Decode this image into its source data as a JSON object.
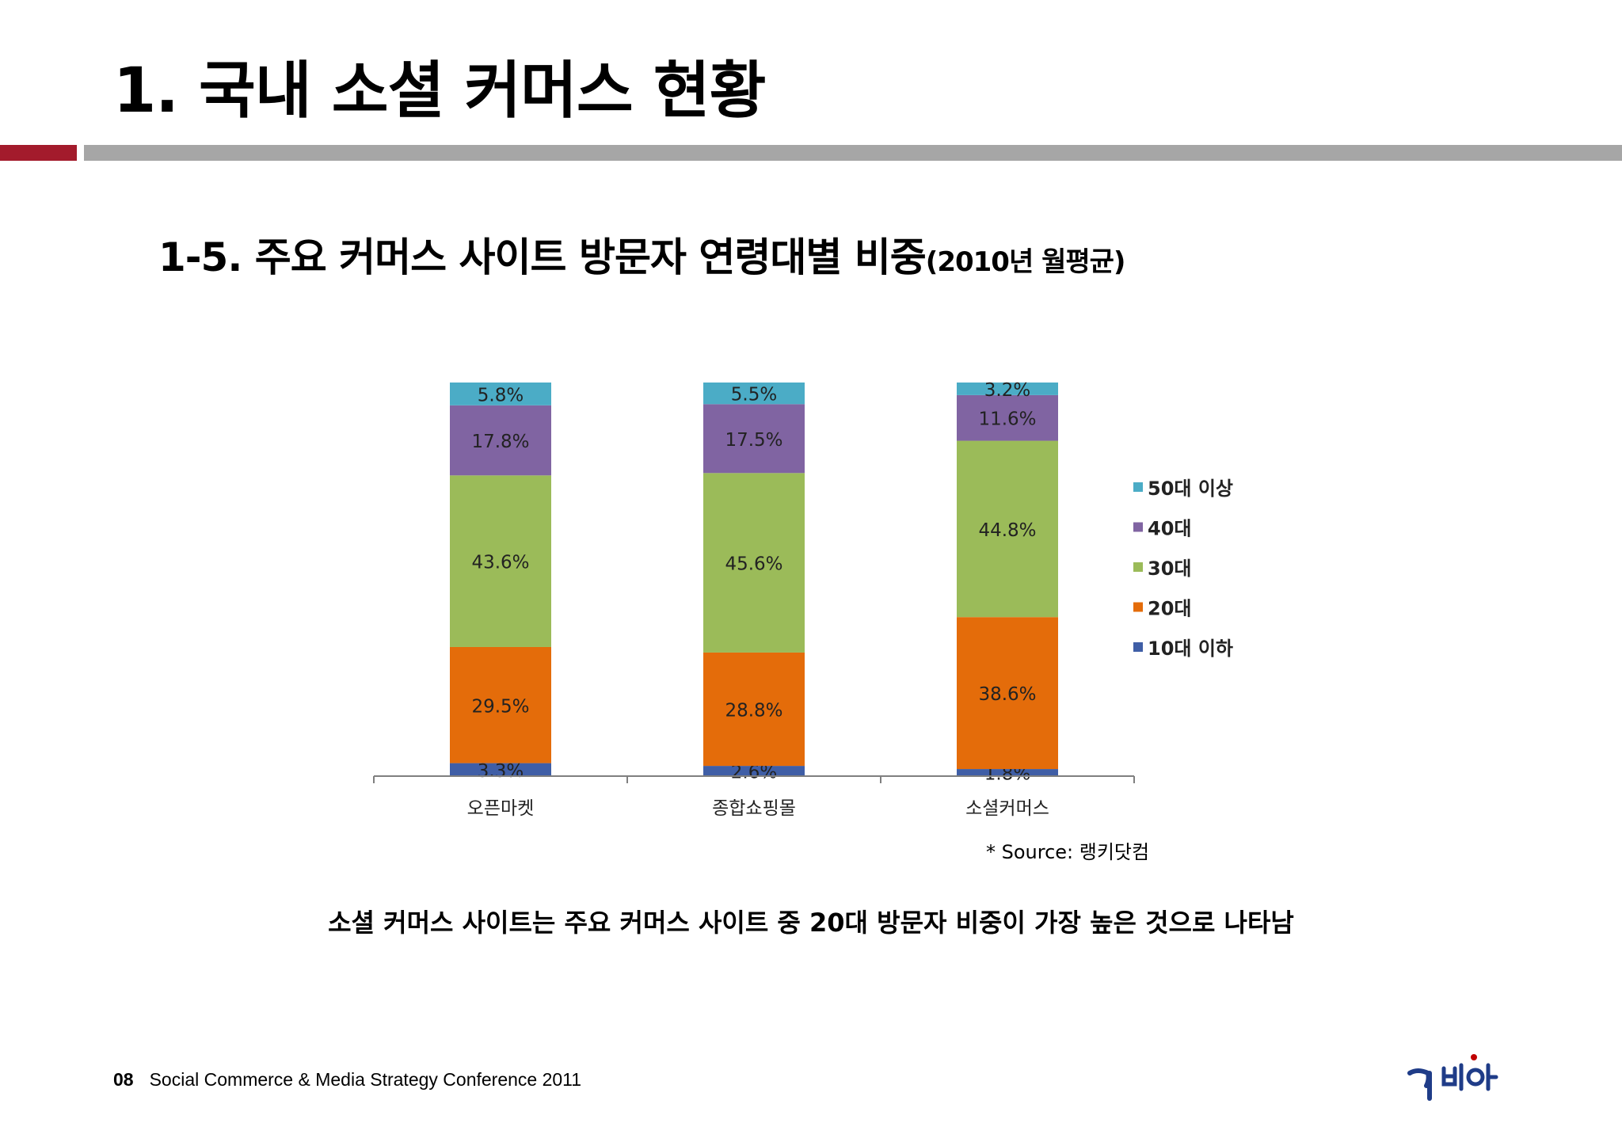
{
  "title": "1. 국내 소셜 커머스 현황",
  "subtitle": {
    "main": "1-5. 주요 커머스 사이트 방문자 연령대별 비중",
    "paren": "(2010년 월평균)"
  },
  "source": "* Source: 랭키닷컴",
  "summary": "소셜 커머스 사이트는 주요 커머스 사이트 중 20대 방문자 비중이 가장 높은 것으로 나타남",
  "footer": {
    "page": "08",
    "text": "Social Commerce & Media Strategy Conference 2011"
  },
  "colors": {
    "accent_red": "#a31b2c",
    "rule_gray": "#a6a6a6"
  },
  "chart_data": {
    "type": "bar",
    "stacked": true,
    "percent_stacked": true,
    "categories": [
      "오픈마켓",
      "종합쇼핑몰",
      "소셜커머스"
    ],
    "series": [
      {
        "name": "10대 이하",
        "color": "#3f5ea6",
        "values": [
          3.3,
          2.6,
          1.8
        ]
      },
      {
        "name": "20대",
        "color": "#e46c0a",
        "values": [
          29.5,
          28.8,
          38.6
        ]
      },
      {
        "name": "30대",
        "color": "#9bbb59",
        "values": [
          43.6,
          45.6,
          44.8
        ]
      },
      {
        "name": "40대",
        "color": "#8064a2",
        "values": [
          17.8,
          17.5,
          11.6
        ]
      },
      {
        "name": "50대 이상",
        "color": "#4bacc6",
        "values": [
          5.8,
          5.5,
          3.2
        ]
      }
    ],
    "data_label_suffix": "%",
    "legend_position": "right",
    "legend_order": [
      "50대 이상",
      "40대",
      "30대",
      "20대",
      "10대 이하"
    ],
    "grid": false
  }
}
